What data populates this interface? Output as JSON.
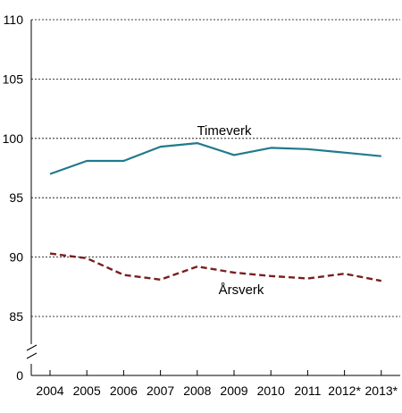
{
  "chart_data": {
    "type": "line",
    "title": "",
    "xlabel": "",
    "ylabel": "",
    "categories": [
      "2004",
      "2005",
      "2006",
      "2007",
      "2008",
      "2009",
      "2010",
      "2011",
      "2012*",
      "2013*"
    ],
    "y_ticks": [
      "110",
      "105",
      "100",
      "95",
      "90",
      "85",
      "0"
    ],
    "ylim": [
      85,
      110
    ],
    "y_axis_break": true,
    "grid": true,
    "series": [
      {
        "name": "Timeverk",
        "color": "#1f7a8c",
        "style": "solid",
        "values": [
          97.0,
          98.1,
          98.1,
          99.3,
          99.6,
          98.6,
          99.2,
          99.1,
          98.8,
          98.5
        ]
      },
      {
        "name": "Årsverk",
        "color": "#7a1f1f",
        "style": "dashed",
        "values": [
          90.3,
          89.9,
          88.5,
          88.1,
          89.2,
          88.7,
          88.4,
          88.2,
          88.6,
          88.0
        ]
      }
    ]
  }
}
